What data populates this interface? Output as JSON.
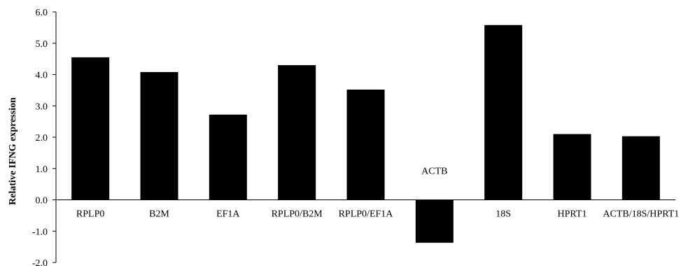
{
  "chart_data": {
    "type": "bar",
    "title": "",
    "xlabel": "",
    "ylabel": "Relative IFNG expression",
    "ylim": [
      -2.0,
      6.0
    ],
    "ytick_step": 1.0,
    "yticks": [
      "-2.0",
      "-1.0",
      "0.0",
      "1.0",
      "2.0",
      "3.0",
      "4.0",
      "5.0",
      "6.0"
    ],
    "grid": false,
    "legend": "none",
    "bar_color": "#000000",
    "categories": [
      "RPLP0",
      "B2M",
      "EF1A",
      "RPLP0/B2M",
      "RPLP0/EF1A",
      "ACTB",
      "18S",
      "HPRT1",
      "ACTB/18S/HPRT1"
    ],
    "values": [
      4.55,
      4.08,
      2.72,
      4.3,
      3.52,
      -1.37,
      5.58,
      2.1,
      2.03
    ]
  }
}
